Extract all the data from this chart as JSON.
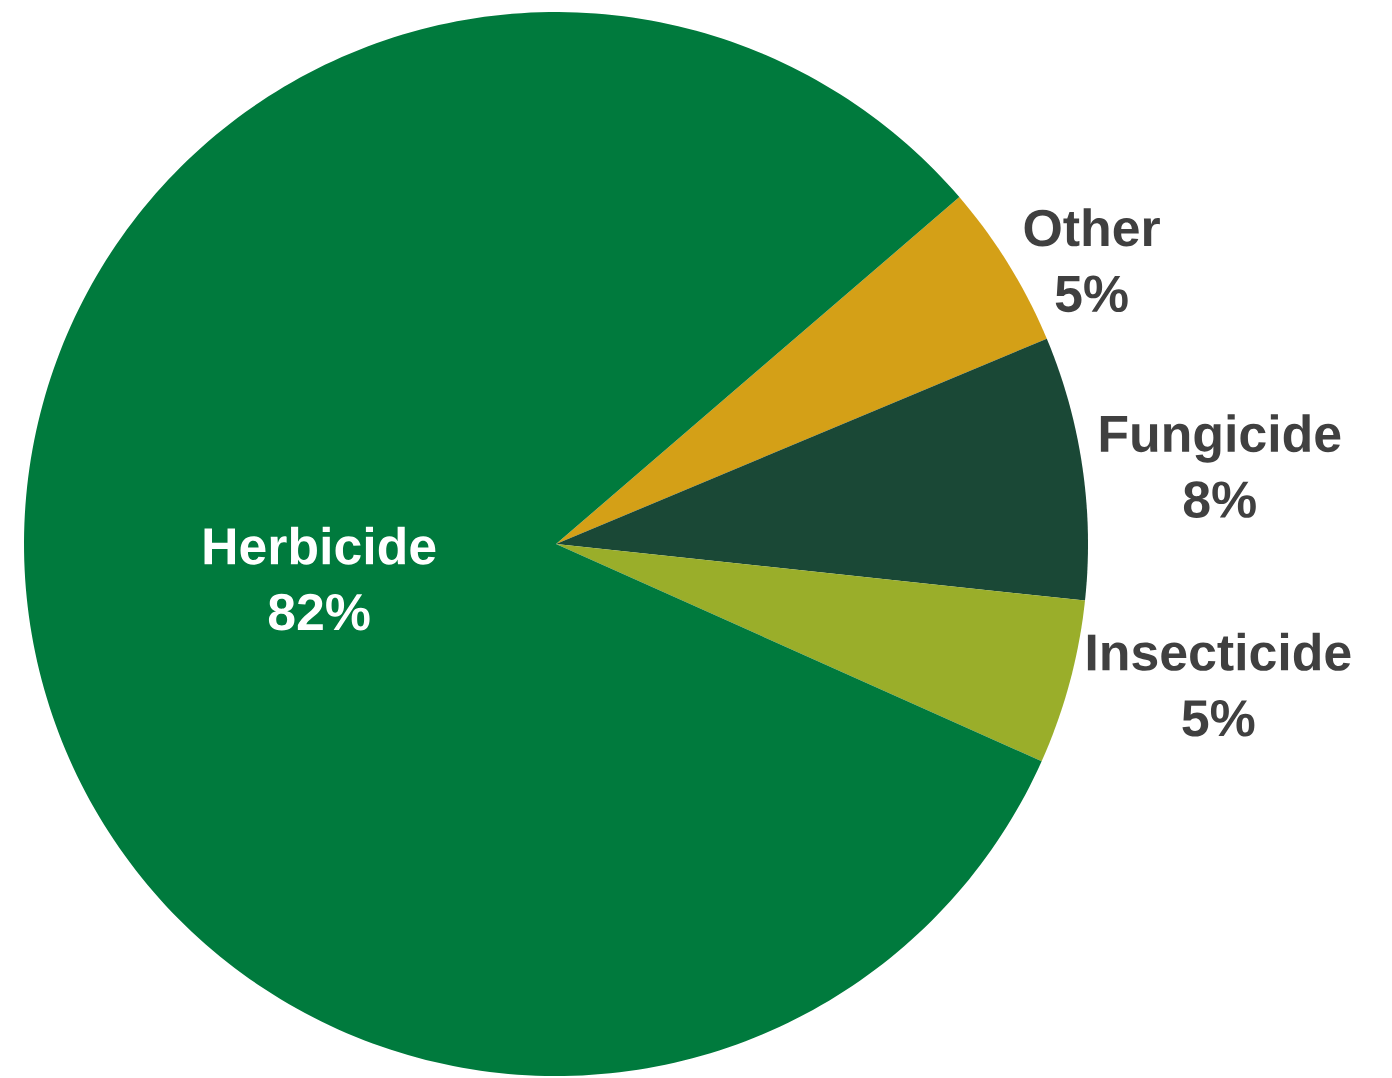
{
  "chart_data": {
    "type": "pie",
    "categories": [
      "Other",
      "Fungicide",
      "Insecticide",
      "Herbicide"
    ],
    "values": [
      5,
      8,
      5,
      82
    ],
    "value_labels": [
      "5%",
      "8%",
      "5%",
      "82%"
    ],
    "colors": [
      "#d4a017",
      "#1a4836",
      "#9aae2a",
      "#007a3d"
    ]
  }
}
